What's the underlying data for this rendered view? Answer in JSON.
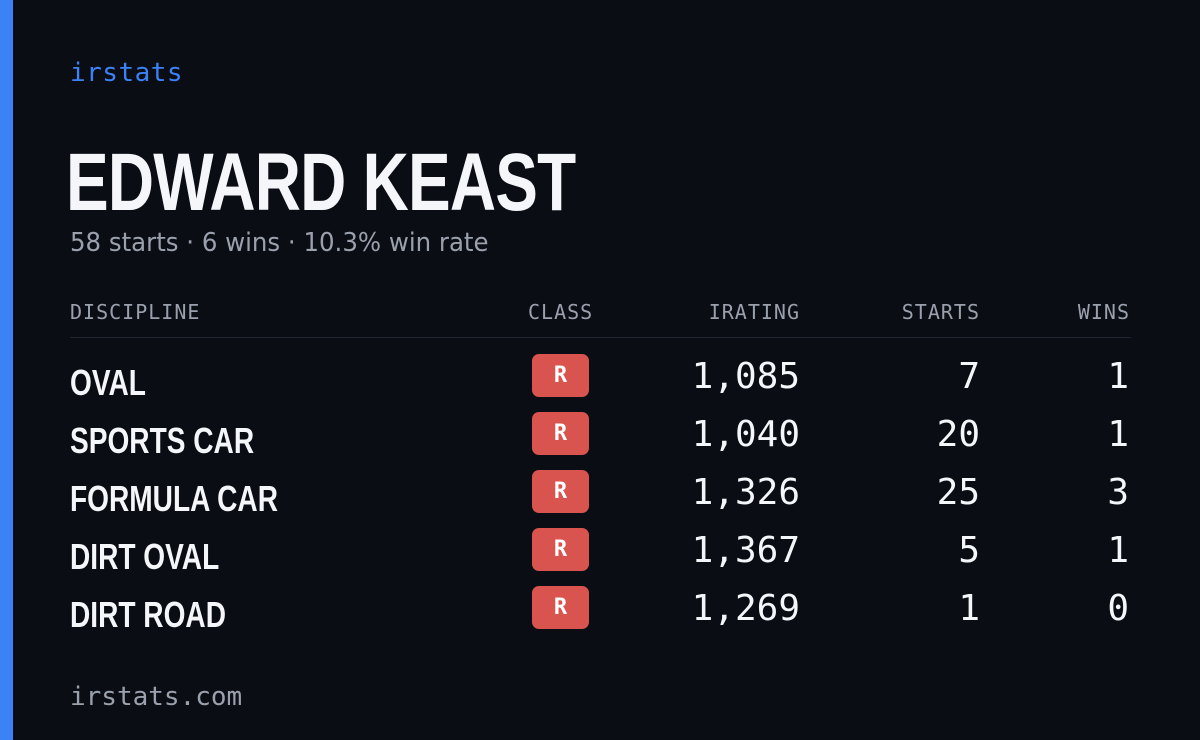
{
  "brand": "irstats",
  "player": {
    "name": "EDWARD KEAST",
    "summary": "58 starts · 6 wins · 10.3% win rate"
  },
  "table": {
    "headers": {
      "discipline": "DISCIPLINE",
      "class": "CLASS",
      "irating": "IRATING",
      "starts": "STARTS",
      "wins": "WINS"
    },
    "rows": [
      {
        "discipline": "OVAL",
        "class": "R",
        "irating": "1,085",
        "starts": "7",
        "wins": "1"
      },
      {
        "discipline": "SPORTS CAR",
        "class": "R",
        "irating": "1,040",
        "starts": "20",
        "wins": "1"
      },
      {
        "discipline": "FORMULA CAR",
        "class": "R",
        "irating": "1,326",
        "starts": "25",
        "wins": "3"
      },
      {
        "discipline": "DIRT OVAL",
        "class": "R",
        "irating": "1,367",
        "starts": "5",
        "wins": "1"
      },
      {
        "discipline": "DIRT ROAD",
        "class": "R",
        "irating": "1,269",
        "starts": "1",
        "wins": "0"
      }
    ]
  },
  "footer": "irstats.com",
  "colors": {
    "accent": "#3b82f6",
    "background": "#0a0d14",
    "class_r": "#d9534f"
  }
}
